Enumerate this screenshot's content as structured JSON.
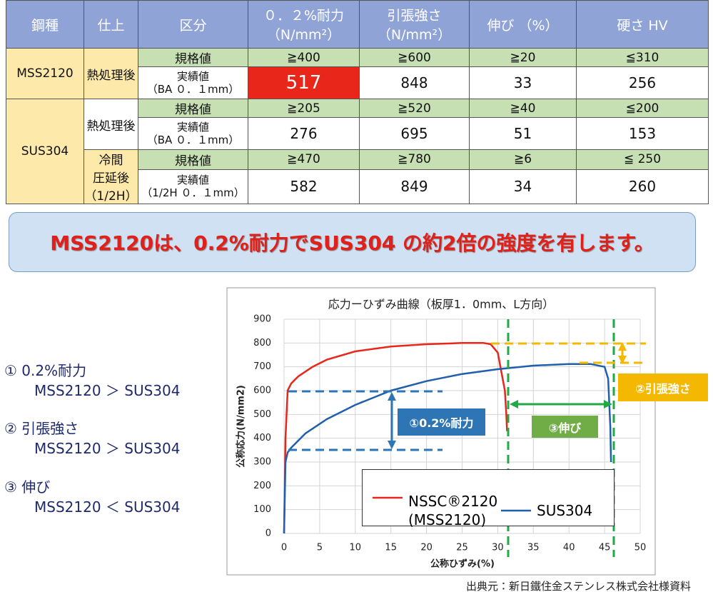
{
  "table": {
    "header": [
      "鋼種",
      "仕上",
      "区分",
      "０．２%耐力\n（N/mm²）",
      "引張強さ\n（N/mm²）",
      "伸び （%）",
      "硬さ HV"
    ],
    "groups": [
      {
        "steel": "MSS2120",
        "finishes": [
          {
            "name": "熱処理後",
            "rows": [
              {
                "kind": "規格値",
                "values": [
                  "≧400",
                  "≧600",
                  "≧20",
                  "≦310"
                ]
              },
              {
                "kind": "実績値\n（BA ０．１mm）",
                "values": [
                  517,
                  848,
                  33,
                  256
                ]
              }
            ]
          }
        ]
      },
      {
        "steel": "SUS304",
        "finishes": [
          {
            "name": "熱処理後",
            "rows": [
              {
                "kind": "規格値",
                "values": [
                  "≧205",
                  "≧520",
                  "≧40",
                  "≦200"
                ]
              },
              {
                "kind": "実績値\n（BA ０．１mm）",
                "values": [
                  276,
                  695,
                  51,
                  153
                ]
              }
            ]
          },
          {
            "name": "冷間\n圧延後\n（1/2H）",
            "rows": [
              {
                "kind": "規格値",
                "values": [
                  "≧470",
                  "≧780",
                  "≧6",
                  "≦ 250"
                ]
              },
              {
                "kind": "実績値\n（1/2H ０．１mm）",
                "values": [
                  582,
                  849,
                  34,
                  260
                ]
              }
            ]
          }
        ]
      }
    ]
  },
  "banner": "MSS2120は、0.2%耐力でSUS304 の約2倍の強度を有します。",
  "notes": [
    {
      "title": "①  0.2%耐力",
      "compare": "MSS2120 ＞ SUS304"
    },
    {
      "title": "②  引張強さ",
      "compare": "MSS2120 ＞ SUS304"
    },
    {
      "title": "③  伸び",
      "compare": "MSS2120 ＜ SUS304"
    }
  ],
  "chart_data": {
    "type": "line",
    "title": "応力ーひずみ曲線（板厚1．0mm、L方向）",
    "xlabel": "公称ひずみ(%)",
    "ylabel": "公称応力(N/mm2)",
    "xlim": [
      0,
      50
    ],
    "ylim": [
      0,
      900
    ],
    "xticks": [
      0,
      5,
      10,
      15,
      20,
      25,
      30,
      35,
      40,
      45,
      50
    ],
    "yticks": [
      0,
      100,
      200,
      300,
      400,
      500,
      600,
      700,
      800,
      900
    ],
    "grid": true,
    "series": [
      {
        "name": "NSSC®2120\n(MSS2120)",
        "color": "#e8261a",
        "x": [
          0,
          0.2,
          0.5,
          1,
          2,
          4,
          6,
          10,
          15,
          20,
          25,
          28,
          29,
          30,
          31,
          31.2,
          31.3
        ],
        "values": [
          0,
          400,
          600,
          630,
          660,
          700,
          730,
          765,
          785,
          795,
          800,
          800,
          795,
          760,
          600,
          500,
          430
        ]
      },
      {
        "name": "SUS304",
        "color": "#1f5fae",
        "x": [
          0,
          0.2,
          0.5,
          1,
          3,
          6,
          10,
          15,
          20,
          25,
          30,
          35,
          40,
          43,
          45,
          45.5,
          45.8,
          45.9
        ],
        "values": [
          0,
          300,
          340,
          360,
          420,
          480,
          540,
          600,
          640,
          670,
          690,
          705,
          712,
          712,
          700,
          650,
          450,
          300
        ]
      }
    ],
    "annotations": [
      "①0.2%耐力",
      "②引張強さ",
      "③伸び"
    ]
  },
  "source": "出典元：新日鐵住金ステンレス株式会社様資料"
}
